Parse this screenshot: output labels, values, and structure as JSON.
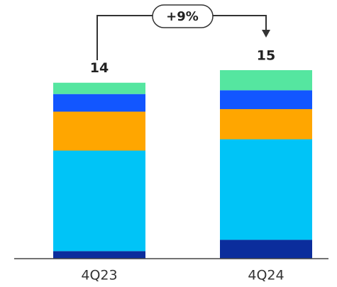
{
  "chart_data": {
    "type": "stacked_bar",
    "categories": [
      "4Q23",
      "4Q24"
    ],
    "totals": [
      14,
      15
    ],
    "annotation": "+9%",
    "series": [
      {
        "color": "#0b2d9c",
        "values": [
          0.6,
          1.5
        ]
      },
      {
        "color": "#00c4f7",
        "values": [
          8.0,
          8.0
        ]
      },
      {
        "color": "#ffa600",
        "values": [
          3.1,
          2.4
        ]
      },
      {
        "color": "#1256ff",
        "values": [
          1.4,
          1.5
        ]
      },
      {
        "color": "#55e6a0",
        "values": [
          0.9,
          1.6
        ]
      }
    ]
  }
}
